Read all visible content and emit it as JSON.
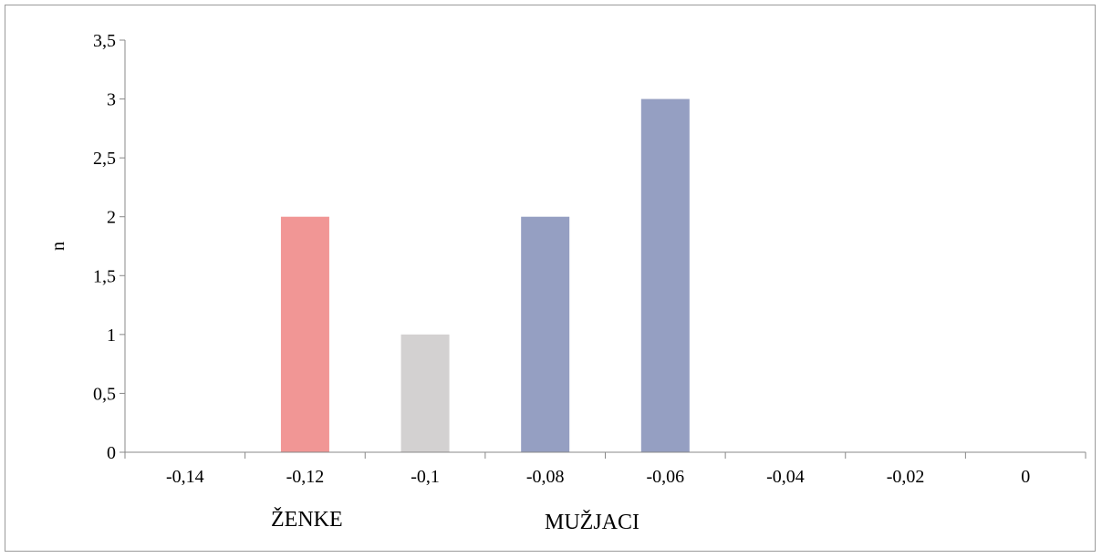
{
  "chart_data": {
    "type": "bar",
    "categories": [
      "-0,14",
      "-0,12",
      "-0,1",
      "-0,08",
      "-0,06",
      "-0,04",
      "-0,02",
      "0"
    ],
    "values": [
      0,
      2,
      1,
      2,
      3,
      0,
      0,
      0
    ],
    "bar_colors": [
      "#f19695",
      "#f19695",
      "#d3d1d1",
      "#959fc2",
      "#959fc2",
      "#959fc2",
      "#959fc2",
      "#959fc2"
    ],
    "ylabel": "n",
    "xlabel": "",
    "ylim": [
      0,
      3.5
    ],
    "yticks": [
      "0",
      "0,5",
      "1",
      "1,5",
      "2",
      "2,5",
      "3",
      "3,5"
    ],
    "ytick_values": [
      0,
      0.5,
      1,
      1.5,
      2,
      2.5,
      3,
      3.5
    ],
    "grid": false,
    "group_labels": [
      "ŽENKE",
      "MUŽJACI"
    ]
  }
}
